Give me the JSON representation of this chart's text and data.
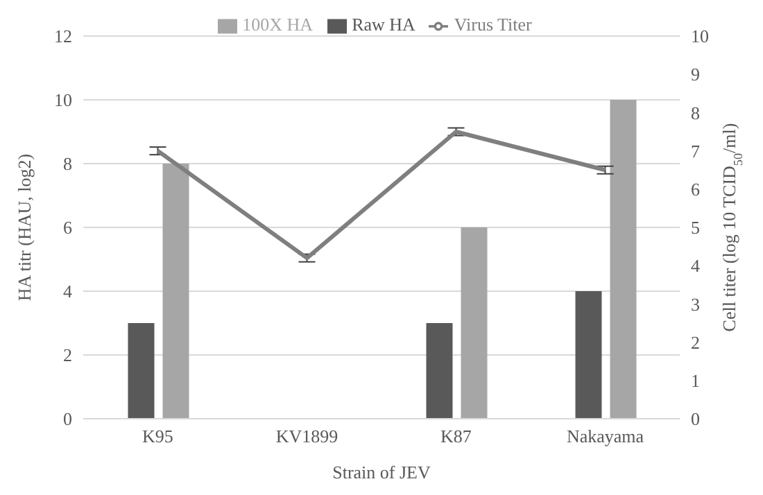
{
  "chart_data": {
    "type": "bar",
    "xlabel": "Strain of JEV",
    "ylabel": "HA titr (HAU, log2)",
    "y2label": "Cell titer (log 10 TCID$_{50}$/ml)",
    "categories": [
      "K95",
      "KV1899",
      "K87",
      "Nakayama"
    ],
    "series": [
      {
        "name": "Raw HA",
        "color": "#595959",
        "values": [
          3,
          null,
          3,
          4
        ]
      },
      {
        "name": "100X HA",
        "color": "#a6a6a6",
        "values": [
          8,
          null,
          6,
          10
        ]
      },
      {
        "name": "Virus Titer",
        "type": "line",
        "axis": "y2",
        "color": "#7f7f7f",
        "values": [
          7.0,
          4.2,
          7.5,
          6.5
        ],
        "errors": [
          0.1,
          0.1,
          0.1,
          0.1
        ]
      }
    ],
    "ylim": [
      0,
      12
    ],
    "yticks": [
      0,
      2,
      4,
      6,
      8,
      10,
      12
    ],
    "y2lim": [
      0,
      10
    ],
    "y2ticks": [
      0,
      1,
      2,
      3,
      4,
      5,
      6,
      7,
      8,
      9,
      10
    ],
    "grid": "y",
    "legend": "top",
    "marker": "none"
  }
}
